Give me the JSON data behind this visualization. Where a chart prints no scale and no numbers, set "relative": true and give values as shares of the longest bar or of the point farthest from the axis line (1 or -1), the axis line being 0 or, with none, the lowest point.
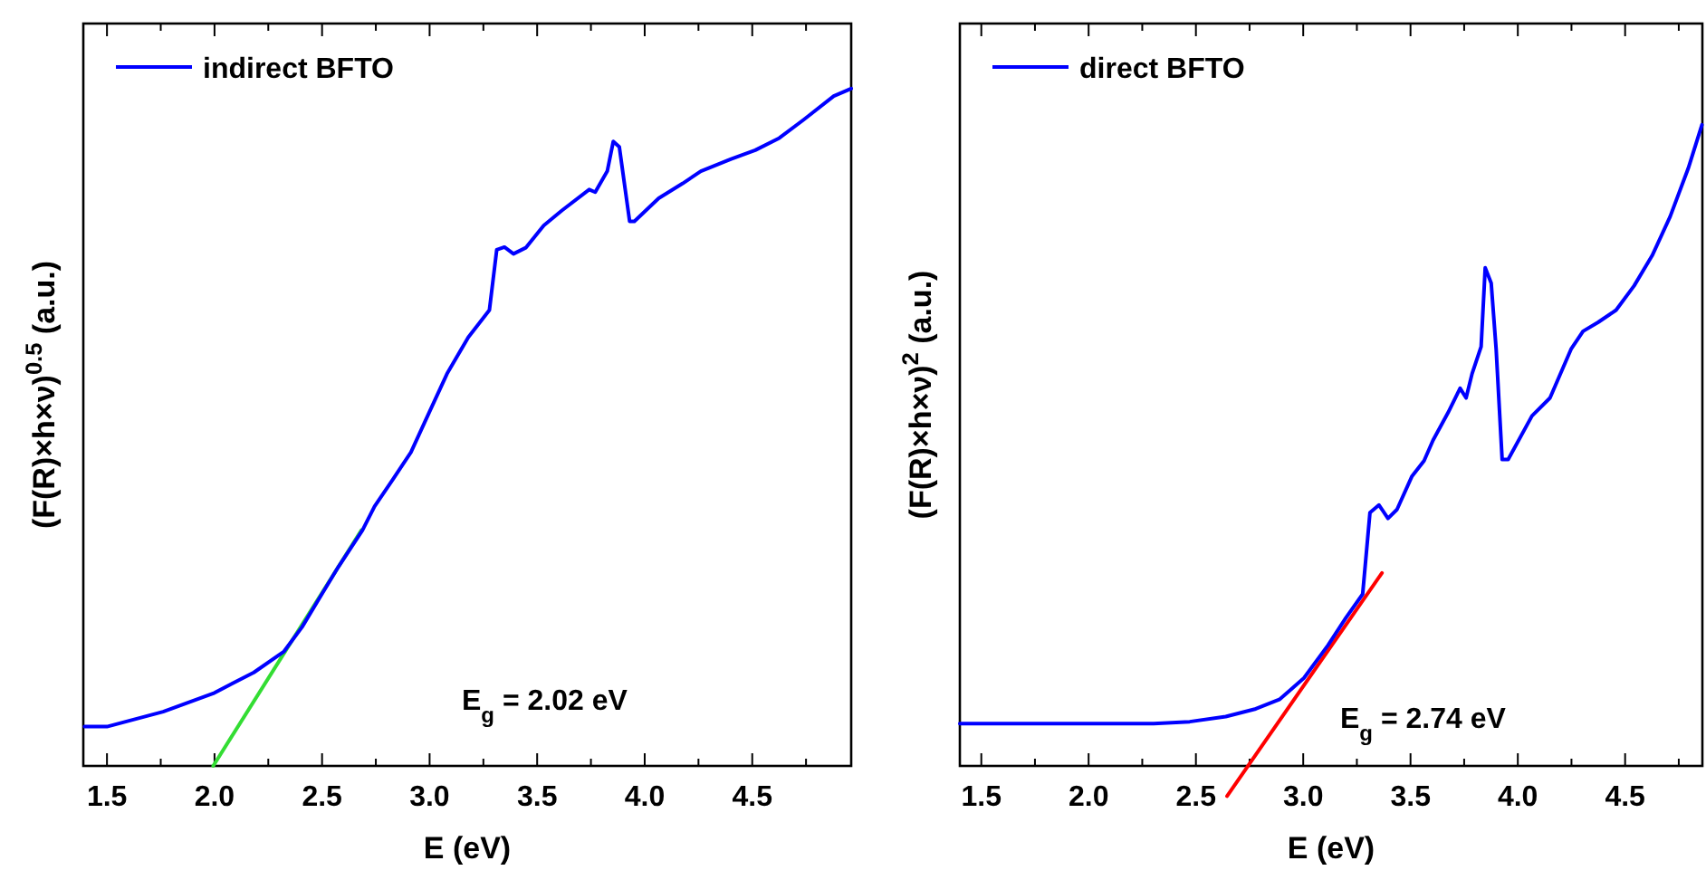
{
  "chart_data": [
    {
      "type": "line",
      "relative": true,
      "xlabel": "E (eV)",
      "ylabel": "(F(R)×h×ν)$^{0.5}$ (a.u.)",
      "xlim": [
        1.39,
        4.96
      ],
      "xticks": [
        1.5,
        {
          "value": 1.75,
          "label": null
        },
        {
          "value": 2,
          "label": "2.0"
        },
        {
          "value": 2.25,
          "label": null
        },
        2.5,
        {
          "value": 2.75,
          "label": null
        },
        {
          "value": 3,
          "label": "3.0"
        },
        {
          "value": 3.25,
          "label": null
        },
        3.5,
        {
          "value": 3.75,
          "label": null
        },
        {
          "value": 4,
          "label": "4.0"
        },
        {
          "value": 4.25,
          "label": null
        },
        4.5,
        {
          "value": 4.75,
          "label": null
        }
      ],
      "tick_labels": "x",
      "legend": "top left",
      "annotations": [
        "E$_{g}$ = 2.02 eV"
      ],
      "series": [
        {
          "name": "indirect BFTO",
          "color": "#0000ff",
          "x": [
            1.396,
            1.5,
            1.761,
            1.994,
            2.183,
            2.323,
            2.407,
            2.492,
            2.576,
            2.688,
            2.744,
            2.829,
            2.913,
            2.997,
            3.081,
            3.18,
            3.278,
            3.312,
            3.348,
            3.39,
            3.447,
            3.531,
            3.615,
            3.742,
            3.77,
            3.826,
            3.854,
            3.882,
            3.93,
            3.952,
            4.065,
            4.177,
            4.261,
            4.402,
            4.514,
            4.626,
            4.739,
            4.879,
            4.96
          ],
          "values": [
            0.058,
            0.058,
            0.08,
            0.107,
            0.138,
            0.169,
            0.205,
            0.25,
            0.294,
            0.348,
            0.383,
            0.423,
            0.463,
            0.521,
            0.579,
            0.633,
            0.673,
            0.762,
            0.766,
            0.756,
            0.765,
            0.798,
            0.82,
            0.851,
            0.847,
            0.878,
            0.922,
            0.914,
            0.804,
            0.804,
            0.838,
            0.86,
            0.878,
            0.896,
            0.909,
            0.927,
            0.954,
            0.989,
            1
          ]
        },
        {
          "type": "line",
          "color": "#33dd33",
          "x": [
            1.994,
            2.683
          ],
          "values": [
            0,
            0.348
          ]
        }
      ]
    },
    {
      "type": "line",
      "relative": true,
      "xlabel": "E (eV)",
      "ylabel": "(F(R)×h×ν)$^{2}$ (a.u.)",
      "xlim": [
        1.4,
        4.86
      ],
      "xticks": [
        1.5,
        {
          "value": 1.75,
          "label": null
        },
        {
          "value": 2,
          "label": "2.0"
        },
        {
          "value": 2.25,
          "label": null
        },
        2.5,
        {
          "value": 2.75,
          "label": null
        },
        {
          "value": 3,
          "label": "3.0"
        },
        {
          "value": 3.25,
          "label": null
        },
        3.5,
        {
          "value": 3.75,
          "label": null
        },
        {
          "value": 4,
          "label": "4.0"
        },
        {
          "value": 4.25,
          "label": null
        },
        4.5,
        {
          "value": 4.75,
          "label": null
        }
      ],
      "tick_labels": "x",
      "legend": "top left",
      "annotations": [
        "E$_{g}$ = 2.74 eV"
      ],
      "series": [
        {
          "name": "direct BFTO",
          "color": "#0000ff",
          "x": [
            1.4,
            2.303,
            2.471,
            2.639,
            2.779,
            2.891,
            3.003,
            3.115,
            3.199,
            3.277,
            3.311,
            3.353,
            3.395,
            3.437,
            3.507,
            3.563,
            3.605,
            3.675,
            3.731,
            3.759,
            3.787,
            3.829,
            3.848,
            3.876,
            3.899,
            3.927,
            3.955,
            4.066,
            4.15,
            4.248,
            4.304,
            4.374,
            4.458,
            4.542,
            4.626,
            4.71,
            4.794,
            4.858
          ],
          "values": [
            0.066,
            0.066,
            0.069,
            0.077,
            0.089,
            0.104,
            0.137,
            0.188,
            0.231,
            0.268,
            0.395,
            0.407,
            0.386,
            0.4,
            0.452,
            0.476,
            0.508,
            0.551,
            0.589,
            0.574,
            0.612,
            0.654,
            0.777,
            0.753,
            0.65,
            0.478,
            0.478,
            0.546,
            0.574,
            0.65,
            0.678,
            0.692,
            0.711,
            0.749,
            0.796,
            0.857,
            0.932,
            1
          ]
        },
        {
          "type": "line",
          "color": "#ff0000",
          "x": [
            2.645,
            3.367
          ],
          "values": [
            -0.047,
            0.301
          ]
        }
      ]
    }
  ]
}
